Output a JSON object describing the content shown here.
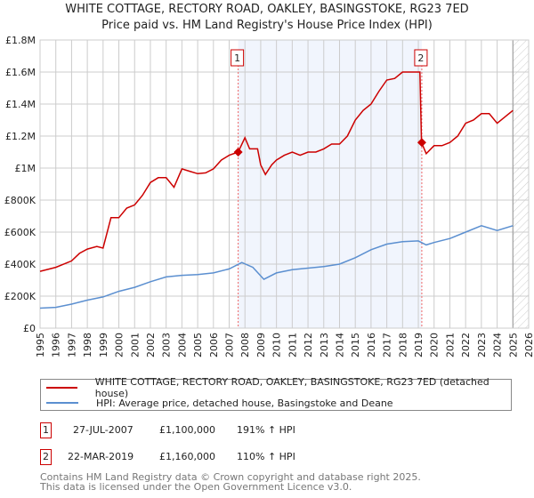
{
  "chart_data": {
    "type": "line",
    "title": "WHITE COTTAGE, RECTORY ROAD, OAKLEY, BASINGSTOKE, RG23 7ED",
    "subtitle": "Price paid vs. HM Land Registry's House Price Index (HPI)",
    "xlim": [
      1995,
      2026
    ],
    "ylim": [
      0,
      1800000
    ],
    "x_ticks": [
      "1995",
      "1996",
      "1997",
      "1998",
      "1999",
      "2000",
      "2001",
      "2002",
      "2003",
      "2004",
      "2005",
      "2006",
      "2007",
      "2008",
      "2009",
      "2010",
      "2011",
      "2012",
      "2013",
      "2014",
      "2015",
      "2016",
      "2017",
      "2018",
      "2019",
      "2020",
      "2021",
      "2022",
      "2023",
      "2024",
      "2025",
      "2026"
    ],
    "y_ticks": [
      {
        "v": 0,
        "label": "£0"
      },
      {
        "v": 200000,
        "label": "£200K"
      },
      {
        "v": 400000,
        "label": "£400K"
      },
      {
        "v": 600000,
        "label": "£600K"
      },
      {
        "v": 800000,
        "label": "£800K"
      },
      {
        "v": 1000000,
        "label": "£1M"
      },
      {
        "v": 1200000,
        "label": "£1.2M"
      },
      {
        "v": 1400000,
        "label": "£1.4M"
      },
      {
        "v": 1600000,
        "label": "£1.6M"
      },
      {
        "v": 1800000,
        "label": "£1.8M"
      }
    ],
    "grid": true,
    "shaded_range": [
      2007.57,
      2019.22
    ],
    "forecast_from": 2025.0,
    "series": [
      {
        "name": "WHITE COTTAGE, RECTORY ROAD, OAKLEY, BASINGSTOKE, RG23 7ED (detached house)",
        "color": "#cc0000",
        "x": [
          1995,
          1996,
          1997,
          1997.5,
          1998,
          1998.6,
          1999,
          1999.5,
          2000,
          2000.5,
          2001,
          2001.5,
          2002,
          2002.5,
          2003,
          2003.5,
          2004,
          2004.5,
          2005,
          2005.5,
          2006,
          2006.5,
          2007,
          2007.57,
          2008,
          2008.3,
          2008.8,
          2009,
          2009.3,
          2009.7,
          2010,
          2010.5,
          2011,
          2011.5,
          2012,
          2012.5,
          2013,
          2013.5,
          2014,
          2014.5,
          2015,
          2015.5,
          2016,
          2016.5,
          2017,
          2017.5,
          2018,
          2018.5,
          2019.1,
          2019.2,
          2019.5,
          2020,
          2020.5,
          2021,
          2021.5,
          2022,
          2022.5,
          2023,
          2023.5,
          2024,
          2024.5,
          2025
        ],
        "y": [
          355000,
          380000,
          420000,
          467000,
          494000,
          510000,
          500000,
          690000,
          690000,
          750000,
          770000,
          830000,
          910000,
          940000,
          940000,
          880000,
          995000,
          980000,
          965000,
          970000,
          995000,
          1050000,
          1080000,
          1100000,
          1190000,
          1120000,
          1120000,
          1020000,
          960000,
          1020000,
          1050000,
          1080000,
          1100000,
          1080000,
          1100000,
          1100000,
          1120000,
          1150000,
          1150000,
          1200000,
          1300000,
          1360000,
          1400000,
          1480000,
          1550000,
          1560000,
          1600000,
          1600000,
          1600000,
          1160000,
          1090000,
          1140000,
          1140000,
          1160000,
          1200000,
          1280000,
          1300000,
          1340000,
          1340000,
          1280000,
          1320000,
          1360000
        ]
      },
      {
        "name": "HPI: Average price, detached house, Basingstoke and Deane",
        "color": "#5b8fd0",
        "x": [
          1995,
          1996,
          1997,
          1998,
          1999,
          2000,
          2001,
          2002,
          2003,
          2004,
          2005,
          2006,
          2007,
          2007.8,
          2008.5,
          2009.2,
          2010,
          2011,
          2012,
          2013,
          2014,
          2015,
          2016,
          2017,
          2018,
          2019,
          2019.5,
          2020,
          2021,
          2022,
          2023,
          2024,
          2025
        ],
        "y": [
          125000,
          130000,
          150000,
          175000,
          195000,
          230000,
          255000,
          290000,
          320000,
          330000,
          335000,
          345000,
          370000,
          410000,
          380000,
          305000,
          345000,
          365000,
          375000,
          385000,
          400000,
          440000,
          490000,
          525000,
          540000,
          545000,
          520000,
          535000,
          560000,
          600000,
          640000,
          610000,
          640000
        ]
      }
    ],
    "markers": [
      {
        "label": "1",
        "x": 2007.57,
        "y": 1100000
      },
      {
        "label": "2",
        "x": 2019.22,
        "y": 1160000
      }
    ]
  },
  "table": [
    {
      "num": "1",
      "date": "27-JUL-2007",
      "price": "£1,100,000",
      "hpi": "191% ↑ HPI"
    },
    {
      "num": "2",
      "date": "22-MAR-2019",
      "price": "£1,160,000",
      "hpi": "110% ↑ HPI"
    }
  ],
  "footer": [
    "Contains HM Land Registry data © Crown copyright and database right 2025.",
    "This data is licensed under the Open Government Licence v3.0."
  ]
}
